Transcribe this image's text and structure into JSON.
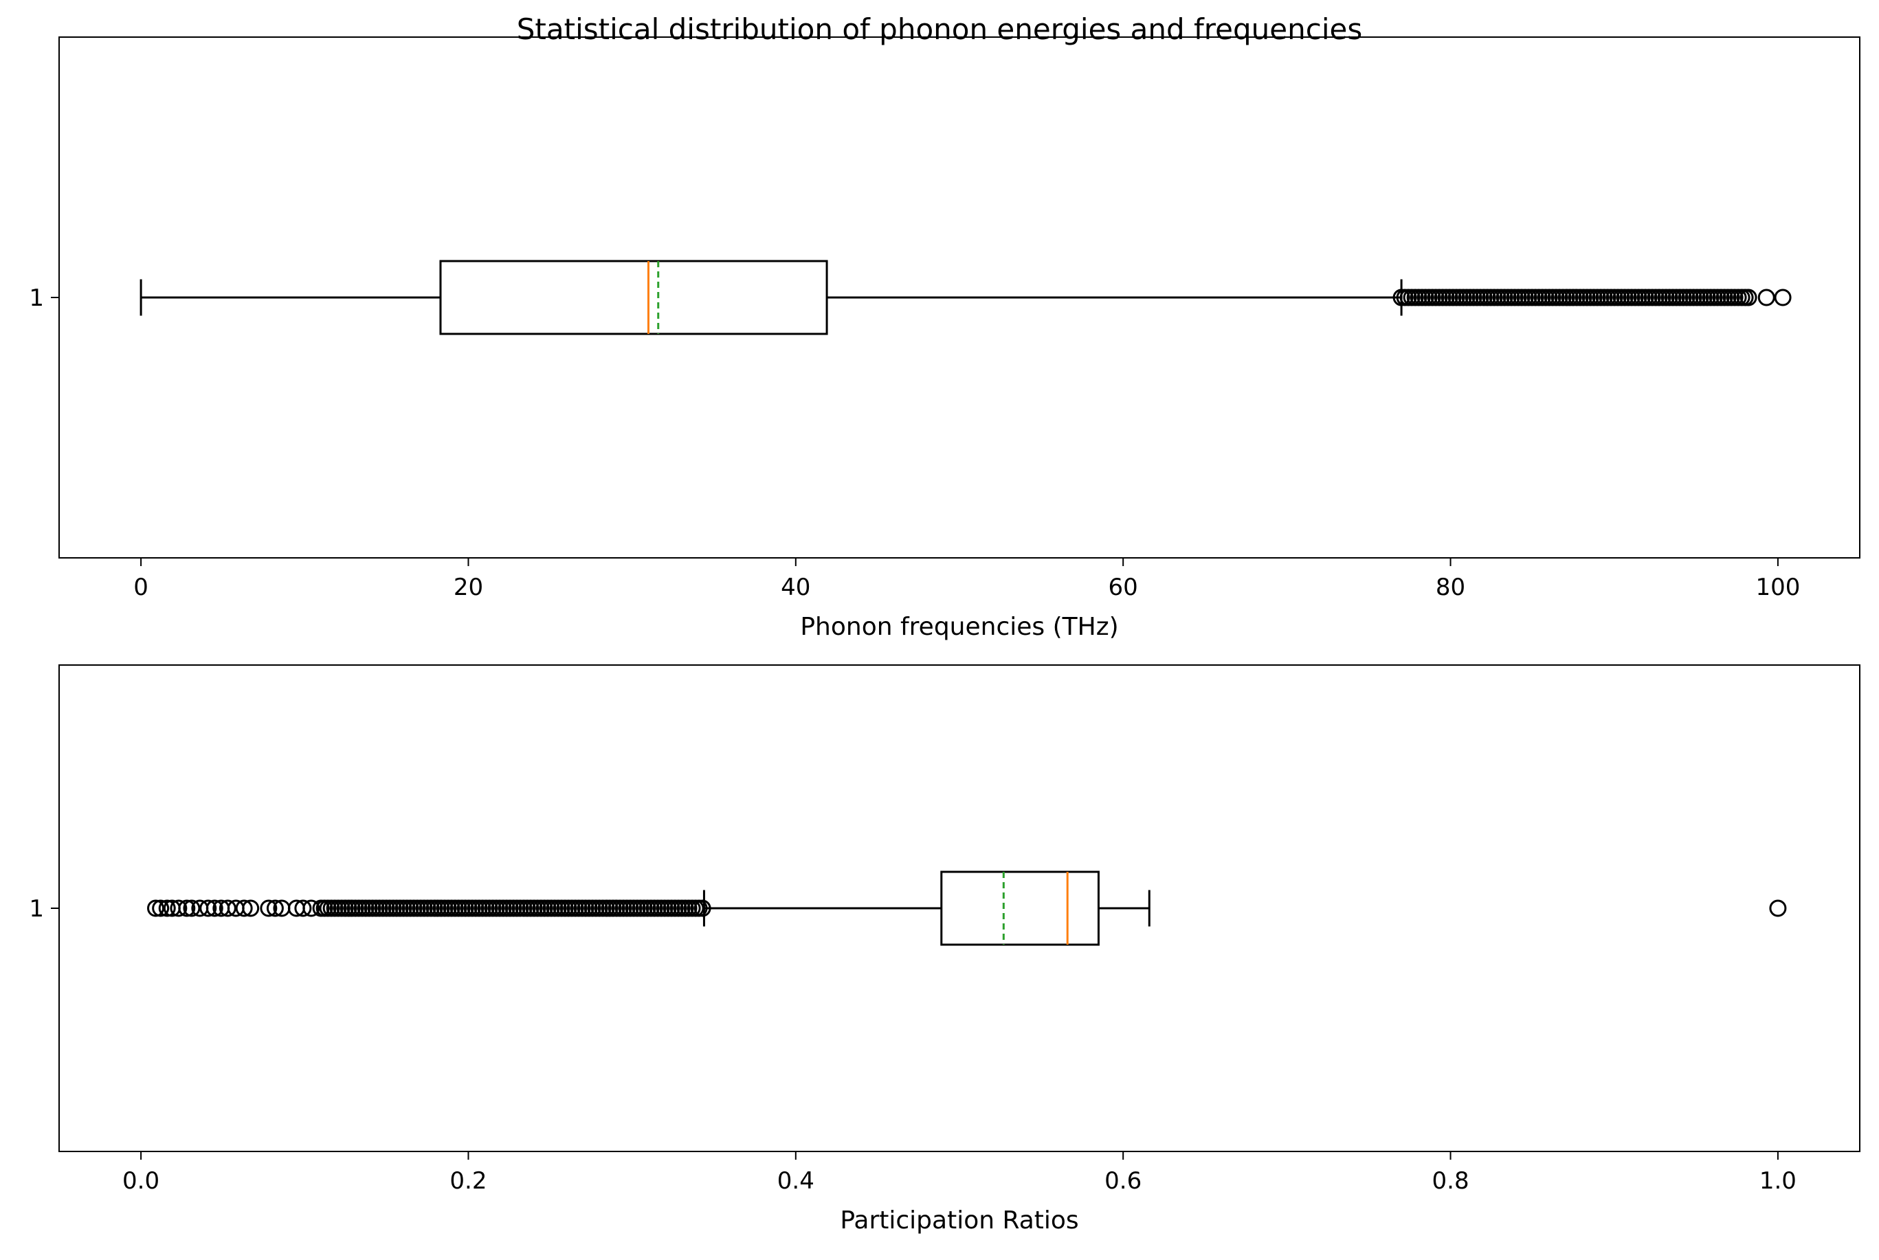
{
  "figure": {
    "title": "Statistical distribution of phonon energies and frequencies"
  },
  "chart_data": [
    {
      "type": "boxplot",
      "orientation": "horizontal",
      "xlabel": "Phonon frequencies (THz)",
      "xlim": [
        -5,
        105
      ],
      "xticks": [
        0,
        20,
        40,
        60,
        80,
        100
      ],
      "ytick_label": "1",
      "showmeans": true,
      "grid": false,
      "stats": {
        "whisker_low": 0.0,
        "q1": 18.3,
        "median": 31.0,
        "mean": 31.6,
        "q3": 41.9,
        "whisker_high": 77.0
      },
      "outliers": {
        "dense_range": [
          77.0,
          98.3
        ],
        "values": [
          99.3,
          100.3
        ]
      }
    },
    {
      "type": "boxplot",
      "orientation": "horizontal",
      "xlabel": "Participation Ratios",
      "xlim": [
        -0.05,
        1.05
      ],
      "xticks": [
        0.0,
        0.2,
        0.4,
        0.6,
        0.8,
        1.0
      ],
      "ytick_label": "1",
      "showmeans": true,
      "grid": false,
      "stats": {
        "whisker_low": 0.344,
        "q1": 0.489,
        "median": 0.566,
        "mean": 0.527,
        "q3": 0.585,
        "whisker_high": 0.616
      },
      "outliers": {
        "dense_range": [
          0.11,
          0.345
        ],
        "values": [
          0.009,
          0.012,
          0.016,
          0.019,
          0.023,
          0.028,
          0.031,
          0.036,
          0.041,
          0.045,
          0.049,
          0.053,
          0.058,
          0.063,
          0.067,
          0.078,
          0.082,
          0.086,
          0.095,
          0.099,
          0.104,
          1.0
        ]
      }
    }
  ],
  "colors": {
    "box": "#000000",
    "median": "#ff7f0e",
    "mean": "#2ca02c",
    "outlier": "#000000"
  }
}
